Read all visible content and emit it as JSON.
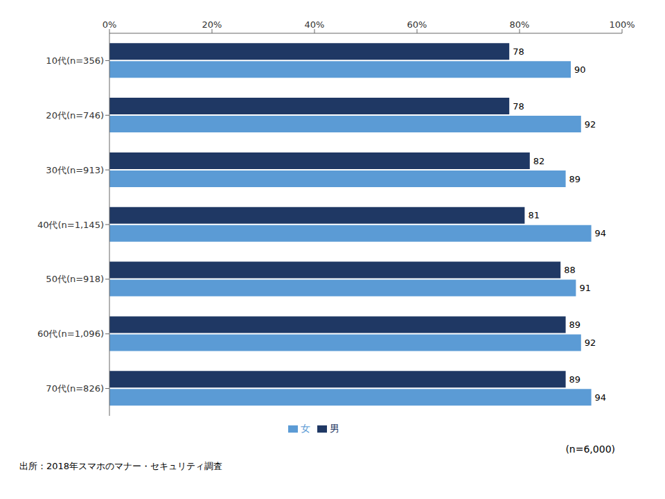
{
  "chart_data": {
    "type": "bar",
    "orientation": "horizontal",
    "categories": [
      "10代(n=356)",
      "20代(n=746)",
      "30代(n=913)",
      "40代(n=1,145)",
      "50代(n=918)",
      "60代(n=1,096)",
      "70代(n=826)"
    ],
    "series": [
      {
        "name": "男",
        "color": "#1F3864",
        "values": [
          78,
          78,
          82,
          81,
          88,
          89,
          89
        ]
      },
      {
        "name": "女",
        "color": "#5B9BD5",
        "values": [
          90,
          92,
          89,
          94,
          91,
          92,
          94
        ]
      }
    ],
    "xlim": [
      0,
      100
    ],
    "xticks": [
      {
        "value": 0,
        "label": "0%"
      },
      {
        "value": 20,
        "label": "20%"
      },
      {
        "value": 40,
        "label": "40%"
      },
      {
        "value": 60,
        "label": "60%"
      },
      {
        "value": 80,
        "label": "80%"
      },
      {
        "value": 100,
        "label": "100%"
      }
    ],
    "data_labels": true,
    "legend": "bottom",
    "grid": false,
    "annotations": [
      "(n=6,000)",
      "出所：2018年スマホのマナー・セキュリティ調査"
    ]
  }
}
